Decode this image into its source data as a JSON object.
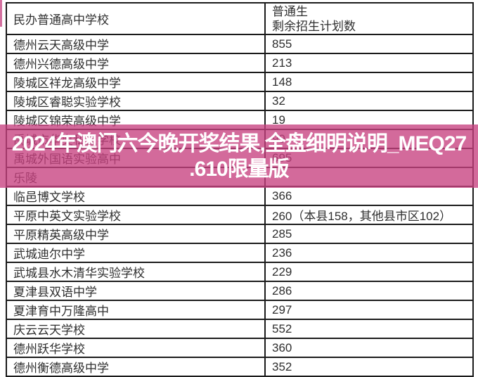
{
  "page": {
    "background_color": "#ffffff",
    "border_color": "#1b1b1b",
    "text_color": "#2f2f2f"
  },
  "table": {
    "header": {
      "school_col": "民办普通高中学校",
      "quota_col_line1": "普通生",
      "quota_col_line2": "剩余招生计划数"
    },
    "rows": [
      {
        "school": "德州云天高级中学",
        "quota": "855"
      },
      {
        "school": "德州兴德高级中学",
        "quota": "213"
      },
      {
        "school": "陵城区祥龙高级中学",
        "quota": "148"
      },
      {
        "school": "陵城区睿聪实验学校",
        "quota": "32"
      },
      {
        "school": "陵城区锦荣高级中学",
        "quota": "19"
      },
      {
        "school": "禹城市华奥私立学校",
        "quota": "99"
      },
      {
        "school": "禹城外国语实验高中",
        "quota": "695"
      },
      {
        "school": "乐陵",
        "quota": ""
      },
      {
        "school": "临邑博文学校",
        "quota": "366"
      },
      {
        "school": "平原中英文实验学校",
        "quota": "260（本县158，其他县市区102）"
      },
      {
        "school": "平原精英高级中学",
        "quota": "285"
      },
      {
        "school": "武城迪尔中学",
        "quota": "236"
      },
      {
        "school": "武城县水木清华实验学校",
        "quota": "229"
      },
      {
        "school": "夏津县双语中学",
        "quota": "286"
      },
      {
        "school": "夏津育中万隆高中",
        "quota": "297"
      },
      {
        "school": "庆云云天学校",
        "quota": "552"
      },
      {
        "school": "德州跃华学校",
        "quota": "360"
      },
      {
        "school": "德州衡德高级中学",
        "quota": "352"
      }
    ]
  },
  "watermark": {
    "line1": "2024年澳门六今晚开奖结果,全盘细明说明_MEQ27",
    "line2": ".610限量版",
    "band_color": "rgba(198,64,127,0.78)",
    "text_color": "#ffffff"
  }
}
